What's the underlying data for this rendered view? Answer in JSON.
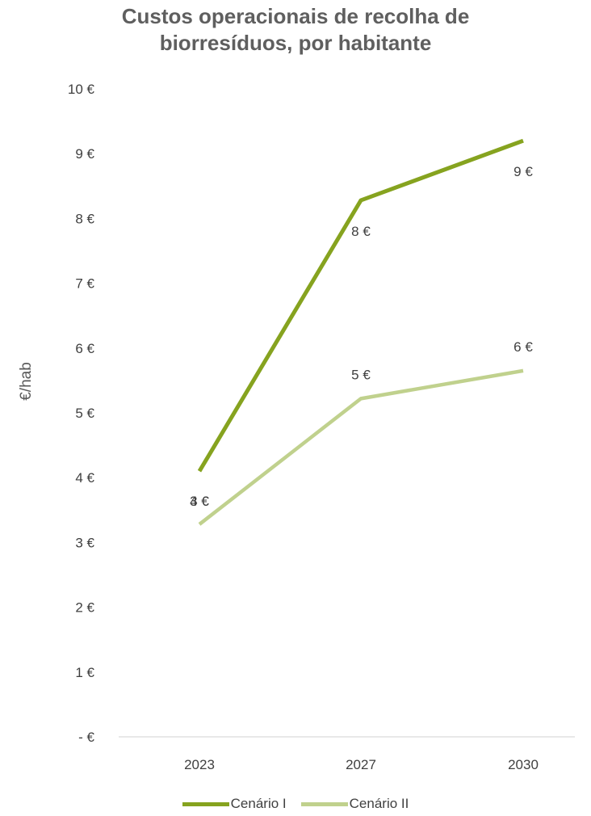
{
  "chart_data": {
    "type": "line",
    "title_line1": "Custos operacionais de recolha de",
    "title_line2": "biorresíduos, por habitante",
    "ylabel": "€/hab",
    "ylim": [
      0,
      10
    ],
    "yticks": [
      "-  €",
      "1 €",
      "2 €",
      "3 €",
      "4 €",
      "5 €",
      "6 €",
      "7 €",
      "8 €",
      "9 €",
      "10 €"
    ],
    "categories": [
      "2023",
      "2027",
      "2030"
    ],
    "series": [
      {
        "name": "Cenário I",
        "color": "#86a31f",
        "values": [
          4.1,
          8.28,
          9.2
        ],
        "labels": [
          "4 €",
          "8 €",
          "9 €"
        ]
      },
      {
        "name": "Cenário II",
        "color": "#c0d18d",
        "values": [
          3.28,
          5.22,
          5.65
        ],
        "labels": [
          "3 €",
          "5 €",
          "6 €"
        ]
      }
    ],
    "legend_position": "bottom"
  }
}
